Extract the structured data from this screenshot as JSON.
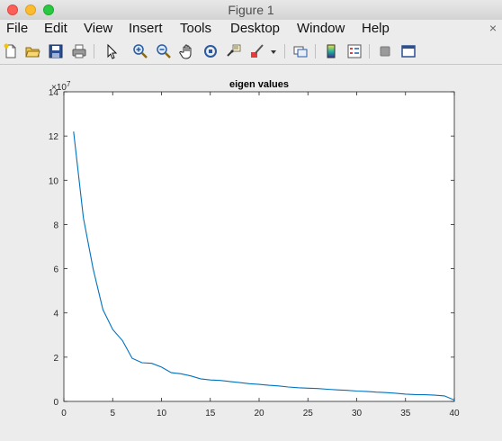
{
  "window": {
    "title": "Figure 1"
  },
  "menu": {
    "items": [
      "File",
      "Edit",
      "View",
      "Insert",
      "Tools",
      "Desktop",
      "Window",
      "Help"
    ],
    "close_glyph": "×"
  },
  "toolbar": {
    "icons": [
      "new-figure-icon",
      "open-file-icon",
      "save-icon",
      "print-icon",
      "edit-plot-pointer-icon",
      "zoom-in-icon",
      "zoom-out-icon",
      "pan-hand-icon",
      "rotate-3d-icon",
      "data-cursor-icon",
      "brush-icon",
      "brush-dropdown-icon",
      "link-plot-icon",
      "insert-colorbar-icon",
      "insert-legend-icon",
      "hide-plot-tools-icon",
      "show-plot-tools-icon"
    ]
  },
  "chart_data": {
    "type": "line",
    "title": "eigen values",
    "xlabel": "",
    "ylabel": "",
    "exponent_label": "×10",
    "exponent_power": "7",
    "xlim": [
      0,
      40
    ],
    "ylim": [
      0,
      14
    ],
    "xticks": [
      0,
      5,
      10,
      15,
      20,
      25,
      30,
      35,
      40
    ],
    "yticks": [
      0,
      2,
      4,
      6,
      8,
      10,
      12,
      14
    ],
    "grid": false,
    "line_color": "#0072bd",
    "series": [
      {
        "x": [
          1,
          2,
          3,
          4,
          5,
          6,
          7,
          8,
          9,
          10,
          11,
          12,
          13,
          14,
          15,
          16,
          17,
          18,
          19,
          20,
          21,
          22,
          23,
          24,
          25,
          26,
          27,
          28,
          29,
          30,
          31,
          32,
          33,
          34,
          35,
          36,
          37,
          38,
          39,
          40
        ],
        "values": [
          12.2,
          8.3,
          6.0,
          4.15,
          3.25,
          2.75,
          1.95,
          1.75,
          1.72,
          1.55,
          1.3,
          1.25,
          1.15,
          1.02,
          0.97,
          0.95,
          0.9,
          0.85,
          0.8,
          0.77,
          0.73,
          0.7,
          0.65,
          0.62,
          0.6,
          0.58,
          0.55,
          0.52,
          0.5,
          0.47,
          0.45,
          0.42,
          0.4,
          0.37,
          0.33,
          0.31,
          0.3,
          0.28,
          0.25,
          0.06
        ]
      }
    ]
  }
}
